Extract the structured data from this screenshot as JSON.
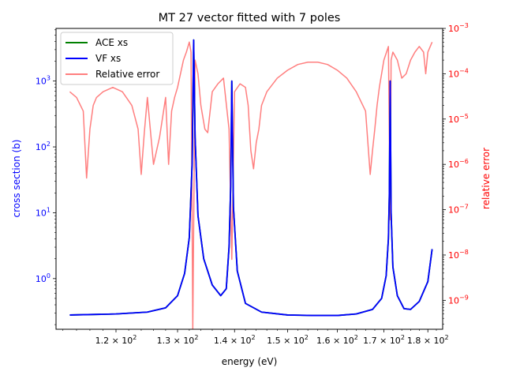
{
  "chart_data": {
    "type": "line",
    "title": "MT 27 vector fitted with 7 poles",
    "xlabel": "energy (eV)",
    "ylabel_left": "cross section (b)",
    "ylabel_right": "relative error",
    "x_scale": "log",
    "y_left_scale": "log",
    "y_right_scale": "log",
    "grid": false,
    "legend_position": "upper-left",
    "xlim": [
      111.0,
      183.5
    ],
    "ylim_left": [
      0.17,
      6300
    ],
    "ylim_right": [
      2.3e-10,
      0.001
    ],
    "x_ticks": [
      120,
      130,
      140,
      150,
      160,
      170,
      180
    ],
    "x_tick_labels": [
      {
        "base": "1.2 × 10",
        "exp": "2"
      },
      {
        "base": "1.3 × 10",
        "exp": "2"
      },
      {
        "base": "1.4 × 10",
        "exp": "2"
      },
      {
        "base": "1.5 × 10",
        "exp": "2"
      },
      {
        "base": "1.6 × 10",
        "exp": "2"
      },
      {
        "base": "1.7 × 10",
        "exp": "2"
      },
      {
        "base": "1.8 × 10",
        "exp": "2"
      }
    ],
    "y_left_ticks": [
      1,
      10,
      100,
      1000
    ],
    "y_left_tick_labels": [
      {
        "base": "10",
        "exp": "0"
      },
      {
        "base": "10",
        "exp": "1"
      },
      {
        "base": "10",
        "exp": "2"
      },
      {
        "base": "10",
        "exp": "3"
      }
    ],
    "y_right_ticks": [
      1e-09,
      1e-08,
      1e-07,
      1e-06,
      1e-05,
      0.0001,
      0.001
    ],
    "y_right_tick_labels": [
      {
        "base": "10",
        "exp": "−9"
      },
      {
        "base": "10",
        "exp": "−8"
      },
      {
        "base": "10",
        "exp": "−7"
      },
      {
        "base": "10",
        "exp": "−6"
      },
      {
        "base": "10",
        "exp": "−5"
      },
      {
        "base": "10",
        "exp": "−4"
      },
      {
        "base": "10",
        "exp": "−3"
      }
    ],
    "colors": {
      "ace": "#008000",
      "vf": "#0000ff",
      "error": "#ff7f7f",
      "left_axis": "#0000ff",
      "right_axis": "#ff0000"
    },
    "series": [
      {
        "name": "ACE xs",
        "axis": "left",
        "x": [
          113.0,
          120.0,
          125.0,
          128.0,
          130.0,
          131.2,
          132.0,
          132.5,
          132.75,
          133.0,
          133.5,
          134.5,
          136.0,
          137.5,
          138.5,
          139.0,
          139.3,
          139.5,
          139.8,
          140.5,
          142.0,
          145.0,
          150.0,
          155.0,
          160.0,
          164.0,
          167.5,
          169.5,
          170.5,
          171.0,
          171.2,
          171.4,
          171.6,
          172.0,
          173.0,
          174.5,
          176.0,
          178.0,
          180.0,
          181.0
        ],
        "y": [
          0.28,
          0.29,
          0.31,
          0.36,
          0.55,
          1.2,
          4.2,
          60,
          4200,
          140,
          9.0,
          2.0,
          0.8,
          0.55,
          0.7,
          3.0,
          25,
          1000,
          12,
          1.3,
          0.42,
          0.31,
          0.28,
          0.275,
          0.275,
          0.29,
          0.34,
          0.5,
          1.1,
          4.0,
          18,
          1000,
          10,
          1.5,
          0.55,
          0.35,
          0.34,
          0.45,
          0.9,
          2.8
        ]
      },
      {
        "name": "VF xs",
        "axis": "left",
        "x": [
          113.0,
          120.0,
          125.0,
          128.0,
          130.0,
          131.2,
          132.0,
          132.5,
          132.75,
          133.0,
          133.5,
          134.5,
          136.0,
          137.5,
          138.5,
          139.0,
          139.3,
          139.5,
          139.8,
          140.5,
          142.0,
          145.0,
          150.0,
          155.0,
          160.0,
          164.0,
          167.5,
          169.5,
          170.5,
          171.0,
          171.2,
          171.4,
          171.6,
          172.0,
          173.0,
          174.5,
          176.0,
          178.0,
          180.0,
          181.0
        ],
        "y": [
          0.28,
          0.29,
          0.31,
          0.36,
          0.55,
          1.2,
          4.2,
          60,
          4200,
          140,
          9.0,
          2.0,
          0.8,
          0.55,
          0.7,
          3.0,
          25,
          1000,
          12,
          1.3,
          0.42,
          0.31,
          0.28,
          0.275,
          0.275,
          0.29,
          0.34,
          0.5,
          1.1,
          4.0,
          18,
          1000,
          10,
          1.5,
          0.55,
          0.35,
          0.34,
          0.45,
          0.9,
          2.8
        ]
      },
      {
        "name": "Relative error",
        "axis": "right",
        "x": [
          113.0,
          114.0,
          115.0,
          115.5,
          116.0,
          116.5,
          117.0,
          118.0,
          119.5,
          121.0,
          122.5,
          123.5,
          124.0,
          124.5,
          125.0,
          126.0,
          127.0,
          128.0,
          128.5,
          129.0,
          129.5,
          130.0,
          130.5,
          131.0,
          131.5,
          132.0,
          132.3,
          132.6,
          133.0,
          133.5,
          134.0,
          134.7,
          135.2,
          136.0,
          137.0,
          138.0,
          139.0,
          139.5,
          140.0,
          141.0,
          142.0,
          142.5,
          143.0,
          143.5,
          144.0,
          144.5,
          145.0,
          146.0,
          148.0,
          150.0,
          152.0,
          154.0,
          156.0,
          158.0,
          160.0,
          162.0,
          164.0,
          166.0,
          166.5,
          167.0,
          167.5,
          168.0,
          168.5,
          169.0,
          170.0,
          171.0,
          171.4,
          171.6,
          172.0,
          173.0,
          174.0,
          175.0,
          176.0,
          177.0,
          178.0,
          179.0,
          179.5,
          180.0,
          181.0
        ],
        "y": [
          4e-05,
          3e-05,
          1.5e-05,
          5e-07,
          6e-06,
          2e-05,
          3e-05,
          4e-05,
          5e-05,
          4e-05,
          2e-05,
          6e-06,
          6e-07,
          5e-06,
          3e-05,
          1e-06,
          4e-06,
          3e-05,
          1e-06,
          1.5e-05,
          3e-05,
          5e-05,
          0.0001,
          0.0002,
          0.0003,
          0.0005,
          0.0003,
          2.3e-10,
          0.0002,
          0.0001,
          2e-05,
          6e-06,
          5e-06,
          4e-05,
          6e-05,
          8e-05,
          6e-06,
          8e-09,
          4e-05,
          6e-05,
          5e-05,
          2e-05,
          2e-06,
          8e-07,
          3e-06,
          6e-06,
          2e-05,
          4e-05,
          8e-05,
          0.00012,
          0.00016,
          0.00018,
          0.00018,
          0.00016,
          0.00012,
          8e-05,
          4e-05,
          1.5e-05,
          3e-06,
          6e-07,
          2e-06,
          6e-06,
          2e-05,
          5e-05,
          0.0002,
          0.0004,
          6e-08,
          0.0002,
          0.0003,
          0.0002,
          8e-05,
          0.0001,
          0.0002,
          0.0003,
          0.0004,
          0.0003,
          0.0001,
          0.0003,
          0.0005
        ]
      }
    ]
  }
}
